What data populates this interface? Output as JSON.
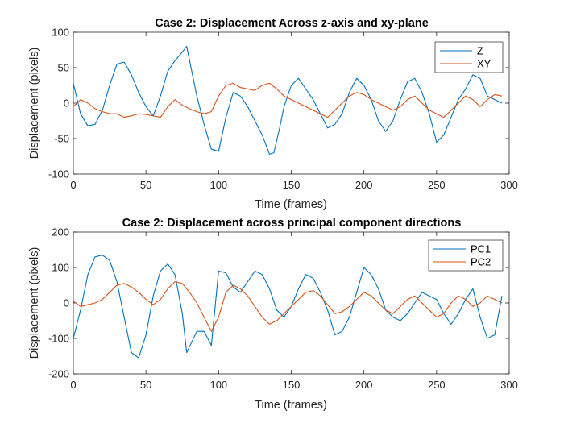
{
  "figure_background": "#ffffff",
  "chart_data": [
    {
      "type": "line",
      "title": "Case 2: Displacement Across z-axis and xy-plane",
      "xlabel": "Time (frames)",
      "ylabel": "Displacement (pixels)",
      "xlim": [
        0,
        300
      ],
      "ylim": [
        -100,
        100
      ],
      "xticks": [
        0,
        50,
        100,
        150,
        200,
        250,
        300
      ],
      "yticks": [
        -100,
        -50,
        0,
        50,
        100
      ],
      "grid": false,
      "legend_position": "top-right",
      "series": [
        {
          "name": "Z",
          "color": "#0072BD",
          "x": [
            0,
            5,
            10,
            15,
            20,
            25,
            30,
            35,
            40,
            45,
            50,
            55,
            60,
            65,
            70,
            75,
            78,
            82,
            85,
            90,
            95,
            100,
            105,
            110,
            115,
            120,
            125,
            130,
            135,
            138,
            142,
            145,
            150,
            155,
            160,
            165,
            170,
            175,
            180,
            185,
            190,
            195,
            200,
            205,
            210,
            215,
            220,
            225,
            230,
            235,
            240,
            245,
            250,
            255,
            260,
            265,
            270,
            275,
            280,
            285,
            290,
            295
          ],
          "y": [
            28,
            -15,
            -32,
            -30,
            -10,
            25,
            55,
            58,
            40,
            15,
            -5,
            -18,
            10,
            45,
            60,
            72,
            80,
            40,
            10,
            -30,
            -65,
            -68,
            -20,
            15,
            10,
            -5,
            -25,
            -45,
            -72,
            -70,
            -35,
            -5,
            25,
            35,
            20,
            5,
            -15,
            -35,
            -30,
            -15,
            15,
            35,
            25,
            5,
            -25,
            -40,
            -25,
            5,
            30,
            35,
            15,
            -15,
            -55,
            -45,
            -20,
            5,
            20,
            40,
            35,
            10,
            5,
            0
          ]
        },
        {
          "name": "XY",
          "color": "#D95319",
          "x": [
            0,
            5,
            10,
            15,
            20,
            25,
            30,
            35,
            40,
            45,
            50,
            55,
            60,
            65,
            70,
            75,
            80,
            85,
            90,
            95,
            100,
            105,
            110,
            115,
            120,
            125,
            130,
            135,
            140,
            145,
            150,
            155,
            160,
            165,
            170,
            175,
            180,
            185,
            190,
            195,
            200,
            205,
            210,
            215,
            220,
            225,
            230,
            235,
            240,
            245,
            250,
            255,
            260,
            265,
            270,
            275,
            280,
            285,
            290,
            295
          ],
          "y": [
            -5,
            5,
            0,
            -8,
            -12,
            -15,
            -15,
            -20,
            -18,
            -15,
            -16,
            -18,
            -20,
            -5,
            5,
            -3,
            -8,
            -12,
            -15,
            -12,
            10,
            25,
            28,
            22,
            20,
            18,
            25,
            28,
            20,
            10,
            5,
            0,
            -5,
            -10,
            -15,
            -20,
            -10,
            0,
            10,
            15,
            12,
            5,
            0,
            -5,
            -10,
            -5,
            5,
            10,
            0,
            -10,
            -15,
            -20,
            -10,
            0,
            10,
            5,
            -5,
            5,
            12,
            10
          ]
        }
      ]
    },
    {
      "type": "line",
      "title": "Case 2: Displacement across principal component directions",
      "xlabel": "Time (frames)",
      "ylabel": "Displacement (pixels)",
      "xlim": [
        0,
        300
      ],
      "ylim": [
        -200,
        200
      ],
      "xticks": [
        0,
        50,
        100,
        150,
        200,
        250,
        300
      ],
      "yticks": [
        -200,
        -100,
        0,
        100,
        200
      ],
      "grid": false,
      "legend_position": "top-right",
      "series": [
        {
          "name": "PC1",
          "color": "#0072BD",
          "x": [
            0,
            5,
            10,
            15,
            20,
            25,
            30,
            35,
            40,
            45,
            50,
            55,
            60,
            65,
            70,
            75,
            78,
            85,
            90,
            95,
            100,
            105,
            110,
            115,
            120,
            125,
            130,
            135,
            140,
            145,
            150,
            155,
            160,
            165,
            170,
            175,
            180,
            185,
            190,
            195,
            200,
            205,
            210,
            215,
            220,
            225,
            230,
            235,
            240,
            245,
            250,
            255,
            260,
            265,
            270,
            275,
            280,
            285,
            290,
            295
          ],
          "y": [
            -100,
            -20,
            80,
            130,
            135,
            120,
            60,
            -40,
            -140,
            -155,
            -90,
            20,
            90,
            110,
            80,
            -30,
            -140,
            -80,
            -80,
            -120,
            90,
            85,
            45,
            30,
            60,
            90,
            80,
            40,
            -20,
            -40,
            -10,
            40,
            80,
            70,
            30,
            -20,
            -90,
            -80,
            -40,
            30,
            100,
            80,
            40,
            -20,
            -40,
            -50,
            -30,
            0,
            30,
            20,
            10,
            -30,
            -60,
            -30,
            10,
            40,
            -40,
            -100,
            -90,
            20
          ]
        },
        {
          "name": "PC2",
          "color": "#D95319",
          "x": [
            0,
            5,
            10,
            15,
            20,
            25,
            30,
            35,
            40,
            45,
            50,
            55,
            60,
            65,
            70,
            75,
            80,
            85,
            90,
            95,
            100,
            105,
            110,
            115,
            120,
            125,
            130,
            135,
            140,
            145,
            150,
            155,
            160,
            165,
            170,
            175,
            180,
            185,
            190,
            195,
            200,
            205,
            210,
            215,
            220,
            225,
            230,
            235,
            240,
            245,
            250,
            255,
            260,
            265,
            270,
            275,
            280,
            285,
            290,
            295
          ],
          "y": [
            5,
            -10,
            -5,
            0,
            10,
            30,
            50,
            55,
            45,
            30,
            10,
            -5,
            10,
            40,
            60,
            55,
            30,
            0,
            -40,
            -80,
            -40,
            30,
            50,
            40,
            20,
            -10,
            -40,
            -60,
            -50,
            -30,
            -10,
            10,
            30,
            35,
            20,
            -5,
            -30,
            -25,
            -10,
            10,
            30,
            20,
            0,
            -20,
            -30,
            -10,
            10,
            20,
            0,
            -20,
            -40,
            -30,
            0,
            20,
            10,
            -10,
            0,
            20,
            10,
            0
          ]
        }
      ]
    }
  ]
}
